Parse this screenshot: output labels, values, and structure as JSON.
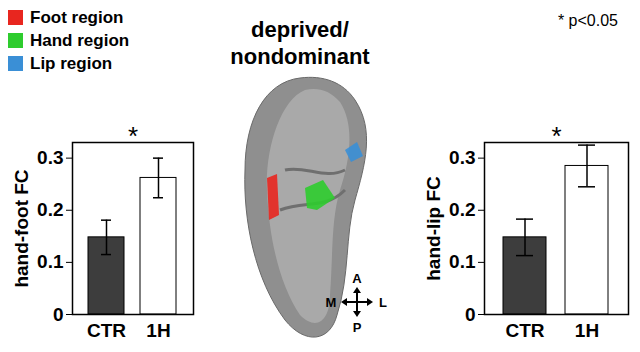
{
  "title": "deprived/nondominant",
  "annotation": "* p<0.05",
  "legend": [
    {
      "label": "Foot region",
      "color": "#e8261f"
    },
    {
      "label": "Hand region",
      "color": "#2ecc2e"
    },
    {
      "label": "Lip region",
      "color": "#3a8fd6"
    }
  ],
  "compass": {
    "up": "A",
    "down": "P",
    "left": "M",
    "right": "L"
  },
  "chart_data": [
    {
      "type": "bar",
      "ylabel": "hand-foot FC",
      "categories": [
        "CTR",
        "1H"
      ],
      "values": [
        0.148,
        0.262
      ],
      "errors": [
        0.033,
        0.038
      ],
      "colors": [
        "#3d3d3d",
        "#ffffff"
      ],
      "ylim": [
        0,
        0.33
      ],
      "yticks": [
        0,
        0.1,
        0.2,
        0.3
      ],
      "annotation": "*"
    },
    {
      "type": "bar",
      "ylabel": "hand-lip FC",
      "categories": [
        "CTR",
        "1H"
      ],
      "values": [
        0.148,
        0.285
      ],
      "errors": [
        0.035,
        0.04
      ],
      "colors": [
        "#3d3d3d",
        "#ffffff"
      ],
      "ylim": [
        0,
        0.33
      ],
      "yticks": [
        0,
        0.1,
        0.2,
        0.3
      ],
      "annotation": "*"
    }
  ]
}
